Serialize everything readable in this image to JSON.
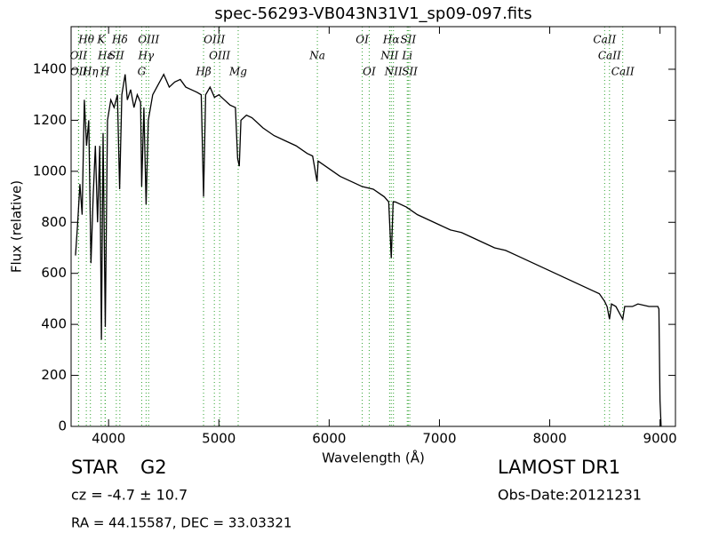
{
  "chart_data": {
    "type": "line",
    "title": "spec-56293-VB043N31V1_sp09-097.fits",
    "x_label": "Wavelength (Å)",
    "y_label": "Flux (relative)",
    "color": "#000000",
    "line_color": "#2ca02c",
    "xlim": [
      3660,
      9140
    ],
    "ylim": [
      0,
      1567
    ],
    "xticks": [
      4000,
      5000,
      6000,
      7000,
      8000,
      9000
    ],
    "yticks": [
      0,
      200,
      400,
      600,
      800,
      1000,
      1200,
      1400
    ],
    "x": [
      3700,
      3720,
      3740,
      3760,
      3780,
      3800,
      3820,
      3840,
      3860,
      3880,
      3900,
      3920,
      3935,
      3950,
      3970,
      3990,
      4020,
      4050,
      4080,
      4100,
      4120,
      4150,
      4170,
      4200,
      4230,
      4260,
      4290,
      4300,
      4320,
      4340,
      4360,
      4400,
      4450,
      4500,
      4550,
      4600,
      4650,
      4700,
      4750,
      4800,
      4840,
      4861,
      4880,
      4920,
      4960,
      5000,
      5050,
      5100,
      5150,
      5170,
      5185,
      5200,
      5250,
      5300,
      5400,
      5500,
      5600,
      5700,
      5800,
      5850,
      5890,
      5900,
      6000,
      6100,
      6200,
      6300,
      6400,
      6500,
      6540,
      6563,
      6580,
      6600,
      6700,
      6800,
      6900,
      7000,
      7100,
      7200,
      7300,
      7400,
      7500,
      7600,
      7700,
      7800,
      7900,
      8000,
      8100,
      8200,
      8300,
      8400,
      8450,
      8498,
      8520,
      8542,
      8560,
      8600,
      8662,
      8680,
      8750,
      8800,
      8900,
      8980,
      8990,
      9000,
      9010
    ],
    "values": [
      670,
      800,
      950,
      830,
      1280,
      1100,
      1200,
      640,
      900,
      1100,
      800,
      1100,
      340,
      1150,
      390,
      1200,
      1280,
      1250,
      1300,
      930,
      1300,
      1380,
      1280,
      1320,
      1250,
      1300,
      1270,
      940,
      1250,
      870,
      1200,
      1300,
      1340,
      1380,
      1330,
      1350,
      1360,
      1330,
      1320,
      1310,
      1300,
      900,
      1300,
      1330,
      1290,
      1300,
      1280,
      1260,
      1250,
      1050,
      1020,
      1200,
      1220,
      1210,
      1170,
      1140,
      1120,
      1100,
      1070,
      1060,
      960,
      1040,
      1010,
      980,
      960,
      940,
      930,
      900,
      880,
      660,
      880,
      880,
      860,
      830,
      810,
      790,
      770,
      760,
      740,
      720,
      700,
      690,
      670,
      650,
      630,
      610,
      590,
      570,
      550,
      530,
      520,
      490,
      470,
      420,
      480,
      470,
      420,
      470,
      470,
      480,
      470,
      470,
      460,
      100,
      0
    ],
    "line_rows": [
      [
        {
          "label": "Hθ",
          "x": 3798
        },
        {
          "label": "K",
          "x": 3933
        },
        {
          "label": "Hδ",
          "x": 4102
        },
        {
          "label": "OIII",
          "x": 4363
        },
        {
          "label": "OIII",
          "x": 4959
        },
        {
          "label": "OI",
          "x": 6300
        },
        {
          "label": "Hα",
          "x": 6563
        },
        {
          "label": "SII",
          "x": 6717
        },
        {
          "label": "CaII",
          "x": 8498
        }
      ],
      [
        {
          "label": "OII",
          "x": 3727
        },
        {
          "label": "Hε",
          "x": 3970
        },
        {
          "label": "SII",
          "x": 4070
        },
        {
          "label": "Hγ",
          "x": 4340
        },
        {
          "label": "OIII",
          "x": 5007
        },
        {
          "label": "Na",
          "x": 5893
        },
        {
          "label": "NII",
          "x": 6548
        },
        {
          "label": "Li",
          "x": 6708
        },
        {
          "label": "CaII",
          "x": 8542
        }
      ],
      [
        {
          "label": "OII",
          "x": 3729
        },
        {
          "label": "Hη",
          "x": 3835
        },
        {
          "label": "H",
          "x": 3968
        },
        {
          "label": "G",
          "x": 4300
        },
        {
          "label": "Hβ",
          "x": 4861
        },
        {
          "label": "Mg",
          "x": 5175
        },
        {
          "label": "OI",
          "x": 6363
        },
        {
          "label": "NII",
          "x": 6583
        },
        {
          "label": "SII",
          "x": 6731
        },
        {
          "label": "CaII",
          "x": 8662
        }
      ]
    ]
  },
  "info": {
    "class": "STAR",
    "subclass": "G2",
    "cz": "cz = -4.7 ± 10.7",
    "coords": "RA = 44.15587, DEC = 33.03321",
    "survey": "LAMOST DR1",
    "obs_date": "Obs-Date:20121231"
  }
}
